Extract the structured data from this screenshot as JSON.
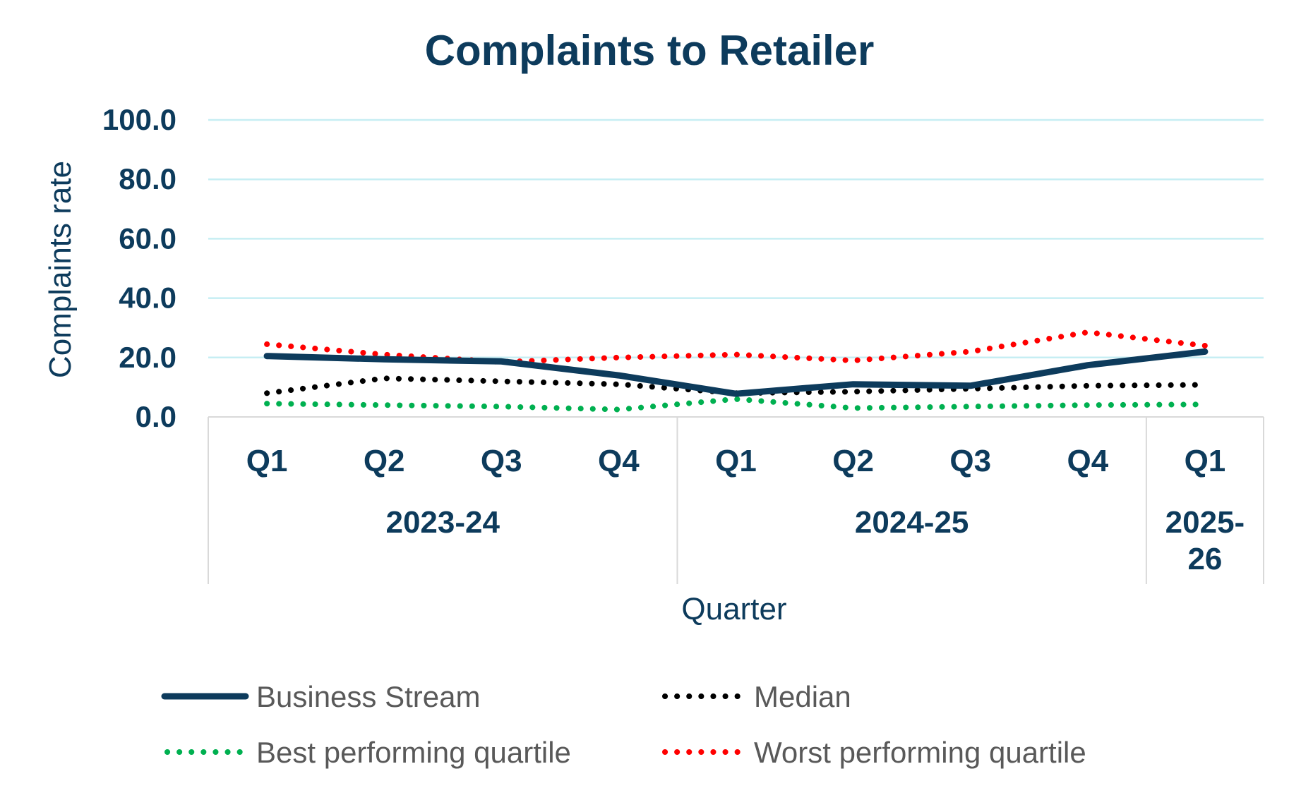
{
  "chart_data": {
    "type": "line",
    "title": "Complaints to Retailer",
    "xlabel": "Quarter",
    "ylabel": "Complaints rate",
    "ylim": [
      0,
      100
    ],
    "y_ticks": [
      "0.0",
      "20.0",
      "40.0",
      "60.0",
      "80.0",
      "100.0"
    ],
    "y_tick_values": [
      0,
      20,
      40,
      60,
      80,
      100
    ],
    "grid": true,
    "legend_position": "bottom",
    "categories": [
      "Q1",
      "Q2",
      "Q3",
      "Q4",
      "Q1",
      "Q2",
      "Q3",
      "Q4",
      "Q1"
    ],
    "groups": [
      {
        "label": "2023-24",
        "count": 4
      },
      {
        "label": "2024-25",
        "count": 4
      },
      {
        "label": "2025-26",
        "count": 1
      }
    ],
    "series": [
      {
        "name": "Business Stream",
        "color": "#0d3b5c",
        "style": "solid",
        "values": [
          20.5,
          19.4,
          18.7,
          14.0,
          7.8,
          11.0,
          10.5,
          17.4,
          22.0
        ]
      },
      {
        "name": "Median",
        "color": "#000000",
        "style": "dotted",
        "values": [
          8.0,
          13.0,
          12.0,
          11.0,
          8.0,
          8.5,
          9.5,
          10.5,
          10.8
        ]
      },
      {
        "name": "Best performing quartile",
        "color": "#00b050",
        "style": "dotted",
        "values": [
          4.5,
          4.0,
          3.5,
          2.5,
          6.0,
          3.0,
          3.5,
          4.0,
          4.2
        ]
      },
      {
        "name": "Worst performing quartile",
        "color": "#ff0000",
        "style": "dotted",
        "values": [
          24.5,
          21.0,
          18.5,
          20.0,
          21.0,
          19.0,
          22.0,
          28.5,
          24.0
        ]
      }
    ]
  }
}
